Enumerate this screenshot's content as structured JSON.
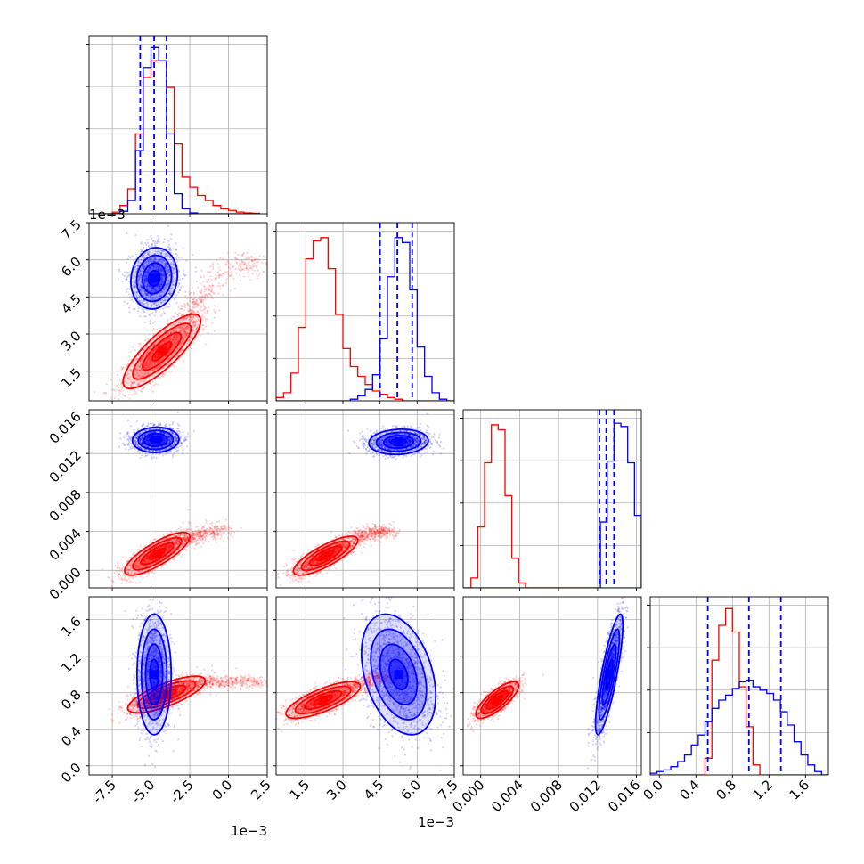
{
  "chart_data": {
    "type": "corner",
    "colors": {
      "model_a": "#0000ff",
      "model_b": "#ff0000"
    },
    "grid": true,
    "parameters": [
      {
        "range": [
          -9.0,
          2.5
        ],
        "ticks": [
          "-7.5",
          "-5.0",
          "-2.5",
          "0.0",
          "2.5"
        ],
        "tick_values": [
          -7.5,
          -5.0,
          -2.5,
          0.0,
          2.5
        ],
        "multiplier": "1e−3"
      },
      {
        "range": [
          0.3,
          7.5
        ],
        "ticks": [
          "1.5",
          "3.0",
          "4.5",
          "6.0",
          "7.5"
        ],
        "tick_values": [
          1.5,
          3.0,
          4.5,
          6.0,
          7.5
        ],
        "multiplier": "1e−3"
      },
      {
        "range": [
          -0.0018,
          0.0165
        ],
        "ticks": [
          "0.000",
          "0.004",
          "0.008",
          "0.012",
          "0.016"
        ],
        "tick_values": [
          0.0,
          0.004,
          0.008,
          0.012,
          0.016
        ],
        "multiplier": ""
      },
      {
        "range": [
          -0.1,
          1.85
        ],
        "ticks": [
          "0.0",
          "0.4",
          "0.8",
          "1.2",
          "1.6"
        ],
        "tick_values": [
          0.0,
          0.4,
          0.8,
          1.2,
          1.6
        ],
        "multiplier": ""
      }
    ],
    "quantiles_model_a": [
      [
        -5.7,
        -4.8,
        -4.0
      ],
      [
        4.5,
        5.2,
        5.8
      ],
      [
        0.0122,
        0.0129,
        0.0137
      ],
      [
        0.53,
        0.98,
        1.33
      ]
    ],
    "histograms": [
      {
        "bins": [
          -9.0,
          -8.5,
          -8.0,
          -7.5,
          -7.0,
          -6.5,
          -6.0,
          -5.5,
          -5.0,
          -4.5,
          -4.0,
          -3.5,
          -3.0,
          -2.5,
          -2.0,
          -1.5,
          -1.0,
          -0.5,
          0.0,
          0.5,
          1.0,
          1.5,
          2.0
        ],
        "model_a": [
          0,
          0,
          0,
          0.2,
          1.5,
          8,
          38,
          88,
          100,
          92,
          48,
          12,
          3,
          0.5,
          0,
          0,
          0,
          0,
          0,
          0,
          0,
          0
        ],
        "model_b": [
          0,
          0,
          0,
          1,
          5,
          15,
          48,
          82,
          92,
          92,
          76,
          42,
          22,
          16,
          11,
          8,
          5,
          3,
          2,
          1,
          0.5,
          0.3
        ]
      },
      {
        "bins": [
          0.3,
          0.6,
          0.9,
          1.2,
          1.5,
          1.8,
          2.1,
          2.4,
          2.7,
          3.0,
          3.3,
          3.6,
          3.9,
          4.2,
          4.5,
          4.8,
          5.1,
          5.4,
          5.7,
          6.0,
          6.3,
          6.6,
          6.9,
          7.2,
          7.5
        ],
        "model_a": [
          0,
          0,
          0,
          0,
          0,
          0,
          0,
          0,
          0,
          0,
          1,
          3,
          7,
          16,
          38,
          76,
          100,
          97,
          68,
          33,
          15,
          5,
          1,
          0
        ],
        "model_b": [
          2,
          5,
          17,
          45,
          87,
          98,
          100,
          81,
          53,
          32,
          21,
          15,
          10,
          6,
          4,
          2,
          1,
          0,
          0,
          0,
          0,
          0,
          0,
          0
        ]
      },
      {
        "bins": [
          -0.0018,
          -0.001,
          -0.0003,
          0.0004,
          0.0011,
          0.0018,
          0.0025,
          0.0032,
          0.0039,
          0.0046,
          0.0053,
          0.006,
          0.0067,
          0.0074,
          0.0081,
          0.0088,
          0.0095,
          0.0102,
          0.0109,
          0.0116,
          0.0123,
          0.013,
          0.0137,
          0.0144,
          0.0151,
          0.0158,
          0.0165
        ],
        "model_a": [
          0,
          0,
          0,
          0,
          0,
          0,
          0,
          0,
          0,
          0,
          0,
          0,
          0,
          0,
          0,
          0,
          0,
          0,
          0,
          0,
          40,
          77,
          100,
          98,
          76,
          44
        ],
        "model_b": [
          0,
          6,
          37,
          76,
          99,
          96,
          56,
          18,
          3,
          0,
          0,
          0,
          0,
          0,
          0,
          0,
          0,
          0,
          0,
          0,
          0,
          0,
          0,
          0,
          0,
          0
        ]
      },
      {
        "bins": [
          -0.1,
          -0.025,
          0.05,
          0.125,
          0.2,
          0.275,
          0.35,
          0.425,
          0.5,
          0.575,
          0.65,
          0.725,
          0.8,
          0.875,
          0.95,
          1.025,
          1.1,
          1.175,
          1.25,
          1.325,
          1.4,
          1.475,
          1.55,
          1.625,
          1.7,
          1.775,
          1.85
        ],
        "model_a": [
          1,
          2,
          3,
          5,
          8,
          12,
          18,
          24,
          32,
          40,
          45,
          48,
          52,
          56,
          57,
          53,
          51,
          49,
          45,
          38,
          30,
          20,
          12,
          6,
          2,
          0
        ],
        "model_b": [
          0,
          0,
          0,
          0,
          0,
          0,
          0,
          0,
          10,
          69,
          90,
          100,
          86,
          53,
          29,
          6,
          0,
          0,
          0,
          0,
          0,
          0,
          0,
          0,
          0,
          0
        ]
      }
    ],
    "joint_2d": [
      {
        "row": 1,
        "col": 0,
        "model_a": {
          "mean": [
            -4.8,
            5.25
          ],
          "sd": [
            0.75,
            0.62
          ],
          "rho": 0.1
        },
        "model_b": {
          "mean": [
            -4.3,
            2.3
          ],
          "sd": [
            1.25,
            0.75
          ],
          "rho": 0.82,
          "tail": [
            [
              -3.0,
              3.4
            ],
            [
              -1.8,
              4.5
            ],
            [
              0.0,
              5.7
            ],
            [
              2.0,
              5.9
            ]
          ]
        }
      },
      {
        "row": 2,
        "col": 0,
        "model_a": {
          "mean": [
            -4.7,
            0.0134
          ],
          "sd": [
            0.75,
            0.00065
          ],
          "rho": 0.05
        },
        "model_b": {
          "mean": [
            -4.6,
            0.0017
          ],
          "sd": [
            1.05,
            0.0011
          ],
          "rho": 0.8,
          "tail": [
            [
              -3.0,
              0.003
            ],
            [
              -1.8,
              0.0037
            ],
            [
              0.0,
              0.0042
            ]
          ]
        }
      },
      {
        "row": 2,
        "col": 1,
        "model_a": {
          "mean": [
            5.25,
            0.0132
          ],
          "sd": [
            0.6,
            0.00065
          ],
          "rho": 0.1
        },
        "model_b": {
          "mean": [
            2.3,
            0.0015
          ],
          "sd": [
            0.65,
            0.001
          ],
          "rho": 0.8,
          "tail": [
            [
              3.6,
              0.0034
            ],
            [
              4.3,
              0.004
            ],
            [
              5.0,
              0.004
            ]
          ]
        }
      },
      {
        "row": 3,
        "col": 0,
        "model_a": {
          "mean": [
            -4.8,
            1.0
          ],
          "sd": [
            0.55,
            0.33
          ],
          "rho": 0.0
        },
        "model_b": {
          "mean": [
            -4.0,
            0.78
          ],
          "sd": [
            1.25,
            0.1
          ],
          "rho": 0.75,
          "tail": [
            [
              -2.0,
              0.9
            ],
            [
              0.0,
              0.92
            ],
            [
              2.0,
              0.92
            ]
          ]
        }
      },
      {
        "row": 3,
        "col": 1,
        "model_a": {
          "mean": [
            5.25,
            1.0
          ],
          "sd": [
            0.75,
            0.33
          ],
          "rho": -0.35
        },
        "model_b": {
          "mean": [
            2.2,
            0.72
          ],
          "sd": [
            0.75,
            0.1
          ],
          "rho": 0.75,
          "tail": [
            [
              3.3,
              0.85
            ],
            [
              4.2,
              0.95
            ],
            [
              4.8,
              0.98
            ]
          ]
        }
      },
      {
        "row": 3,
        "col": 2,
        "model_a": {
          "mean": [
            0.0132,
            1.0
          ],
          "sd": [
            0.0007,
            0.33
          ],
          "rho": 0.82
        },
        "model_b": {
          "mean": [
            0.0017,
            0.72
          ],
          "sd": [
            0.0011,
            0.1
          ],
          "rho": 0.78,
          "tail": []
        }
      }
    ]
  }
}
